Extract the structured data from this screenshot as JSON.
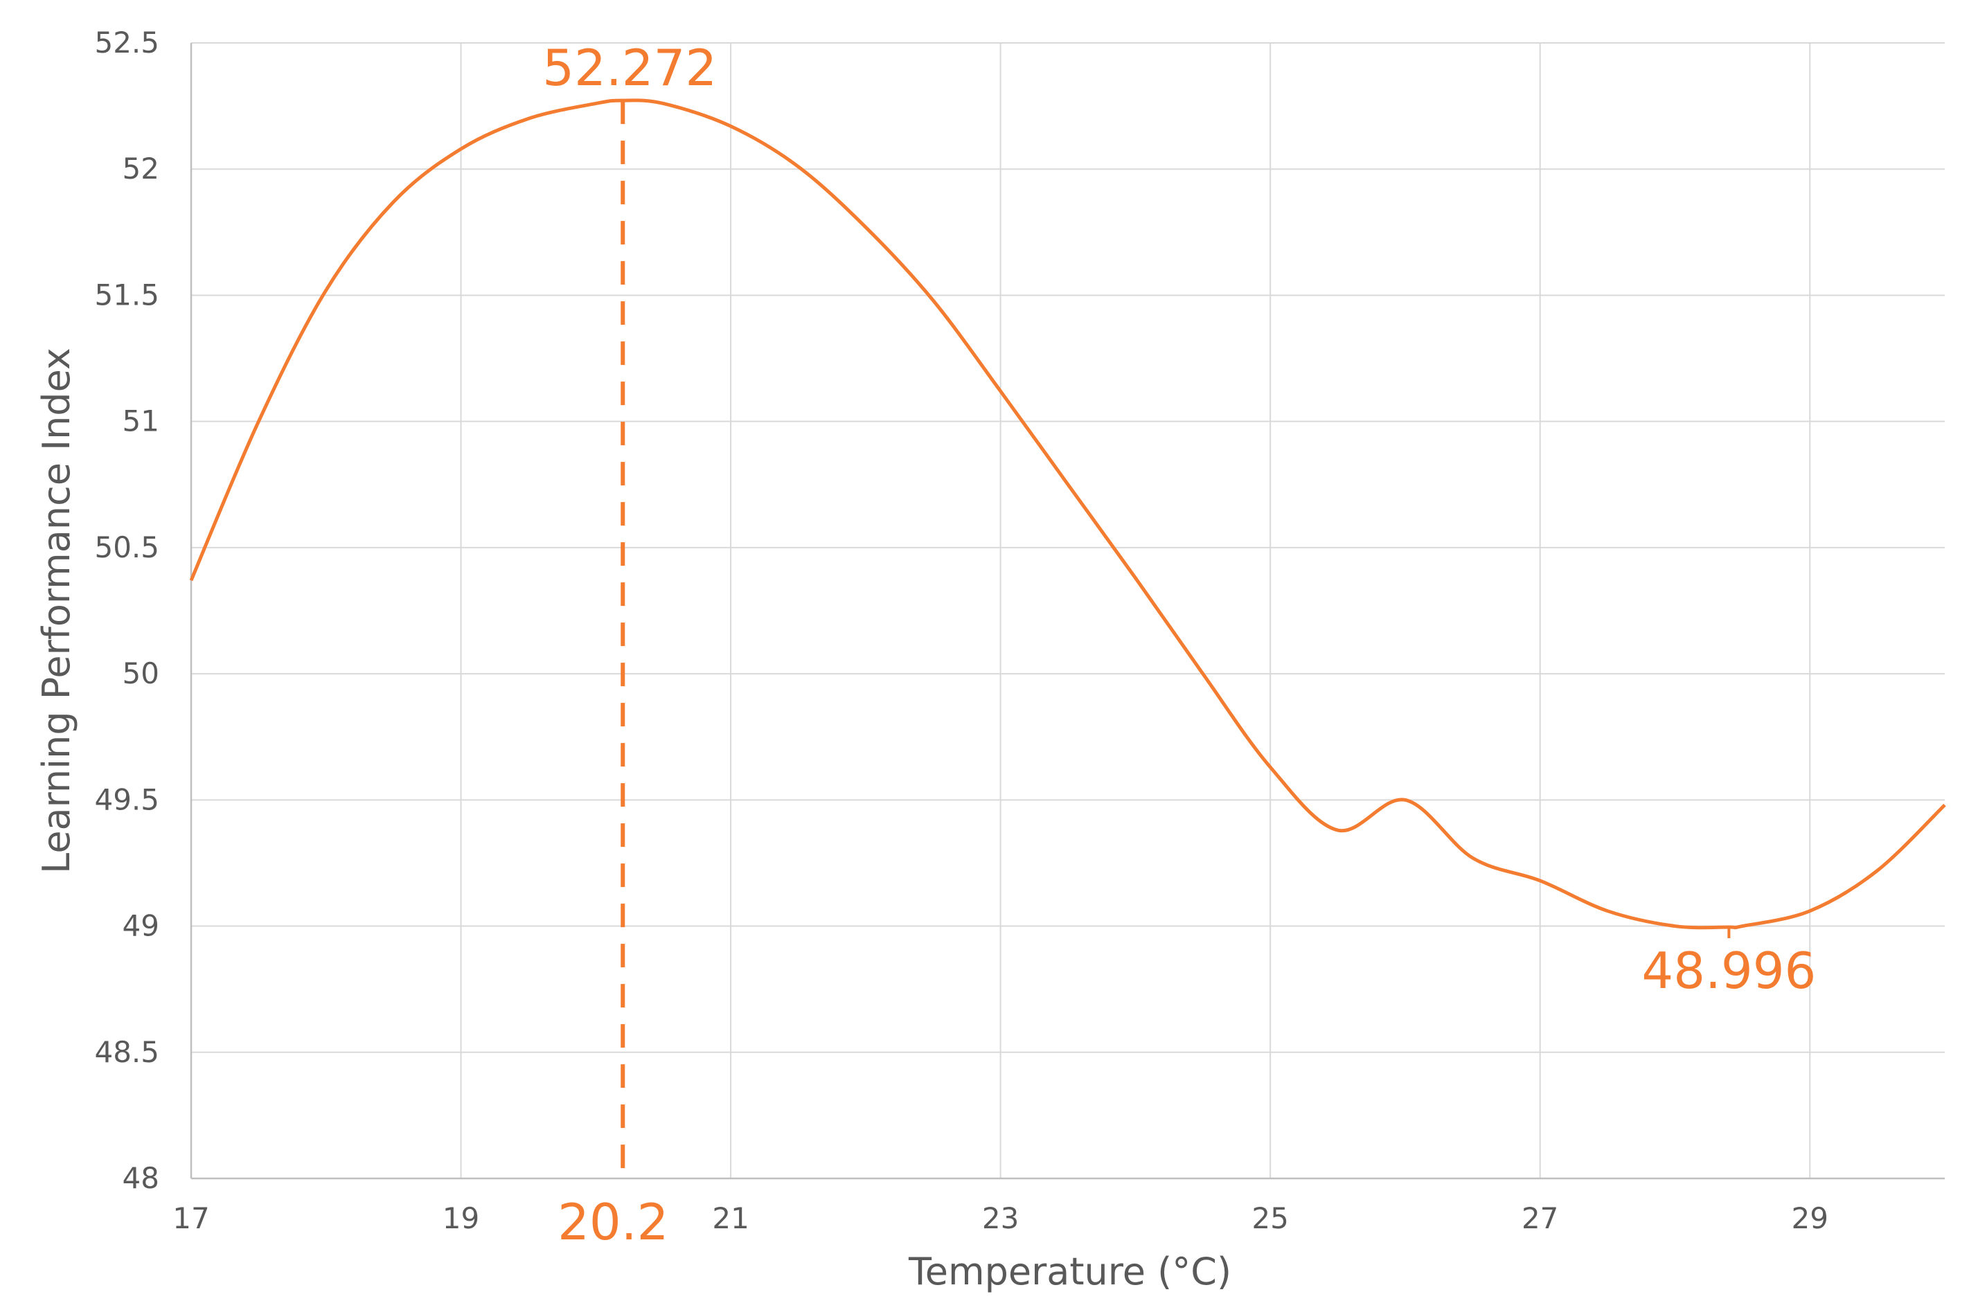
{
  "chart_data": {
    "type": "line",
    "title": "",
    "xlabel": "Temperature (°C)",
    "ylabel": "Learning Performance Index",
    "xlim": [
      17,
      30
    ],
    "ylim": [
      48,
      52.5
    ],
    "x_ticks": [
      "17",
      "19",
      "21",
      "23",
      "25",
      "27",
      "29"
    ],
    "y_ticks": [
      "48",
      "48.5",
      "49",
      "49.5",
      "50",
      "50.5",
      "51",
      "51.5",
      "52",
      "52.5"
    ],
    "grid": true,
    "legend": "none",
    "series": [
      {
        "color": "#f47c30",
        "x": [
          17,
          17.5,
          18,
          18.5,
          19,
          19.5,
          20,
          20.2,
          20.5,
          21,
          21.5,
          22,
          22.5,
          23,
          23.5,
          24,
          24.5,
          25,
          25.5,
          26,
          26.5,
          27,
          27.5,
          28,
          28.4,
          28.5,
          29,
          29.5,
          30
        ],
        "y": [
          50.37,
          51.0,
          51.52,
          51.87,
          52.08,
          52.2,
          52.26,
          52.272,
          52.26,
          52.17,
          52.01,
          51.77,
          51.48,
          51.12,
          50.75,
          50.38,
          50.0,
          49.63,
          49.38,
          49.5,
          49.27,
          49.18,
          49.06,
          49.0,
          48.996,
          49.0,
          49.06,
          49.22,
          49.48
        ]
      }
    ],
    "annotations": {
      "max": {
        "x": 20.2,
        "y": 52.272,
        "value_label": "52.272",
        "x_label": "20.2"
      },
      "min": {
        "x": 28.4,
        "y": 48.996,
        "value_label": "48.996"
      }
    },
    "colors": {
      "accent": "#f47c30",
      "grid": "#d9d9d9",
      "text": "#595959"
    }
  }
}
